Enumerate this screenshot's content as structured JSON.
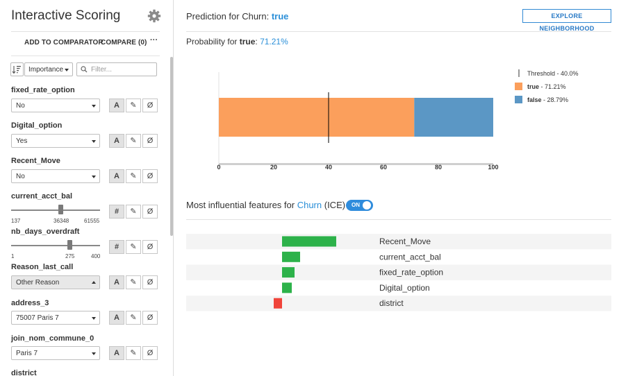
{
  "left": {
    "title": "Interactive Scoring",
    "actions": {
      "add_to_comparator": "ADD TO COMPARATOR",
      "compare": "COMPARE (0)",
      "more": "···"
    },
    "sort": {
      "selected": "Importance"
    },
    "filter": {
      "placeholder": "Filter..."
    },
    "features": [
      {
        "name": "fixed_rate_option",
        "value": "No",
        "type": "A"
      },
      {
        "name": "Digital_option",
        "value": "Yes",
        "type": "A"
      },
      {
        "name": "Recent_Move",
        "value": "No",
        "type": "A"
      },
      {
        "name": "current_acct_bal",
        "value": "36348",
        "min": "137",
        "max": "61555",
        "type": "#"
      },
      {
        "name": "nb_days_overdraft",
        "value": "275",
        "min": "1",
        "max": "400",
        "type": "#"
      },
      {
        "name": "Reason_last_call",
        "value": "Other Reason",
        "type": "A"
      },
      {
        "name": "address_3",
        "value": "75007 Paris 7",
        "type": "A"
      },
      {
        "name": "join_nom_commune_0",
        "value": "Paris 7",
        "type": "A"
      },
      {
        "name": "district"
      }
    ],
    "type_buttons": {
      "edit_symbol": "✎",
      "null_symbol": "Ø"
    }
  },
  "prediction": {
    "title_prefix": "Prediction for Churn: ",
    "predicted_class": "true",
    "explore_label": "EXPLORE NEIGHBORHOOD",
    "prob_prefix": "Probability for ",
    "prob_class": "true",
    "prob_colon": ":",
    "prob_value": "71.21%"
  },
  "influential": {
    "title_prefix": "Most influential features for ",
    "target": "Churn",
    "title_suffix": " (ICE)",
    "toggle_label": "ON"
  },
  "chart_data": [
    {
      "type": "bar",
      "orientation": "horizontal-stacked",
      "series": [
        {
          "name": "true",
          "legend": "true - 71.21%",
          "value": 71.21,
          "color": "#fb9f5c"
        },
        {
          "name": "false",
          "legend": "false - 28.79%",
          "value": 28.79,
          "color": "#5b97c5"
        }
      ],
      "threshold": {
        "value": 40.0,
        "legend": "Threshold - 40.0%"
      },
      "xlim": [
        0,
        100
      ],
      "xticks": [
        "0",
        "20",
        "40",
        "60",
        "80",
        "100"
      ],
      "legend_placement": "right"
    },
    {
      "type": "bar",
      "orientation": "horizontal-diverging",
      "title": "Most influential features for Churn (ICE)",
      "categories": [
        "Recent_Move",
        "current_acct_bal",
        "fixed_rate_option",
        "Digital_option",
        "district"
      ],
      "values": [
        0.39,
        0.13,
        0.09,
        0.07,
        -0.06
      ],
      "colors": {
        "positive": "#2db24a",
        "negative": "#f0443a"
      }
    }
  ]
}
